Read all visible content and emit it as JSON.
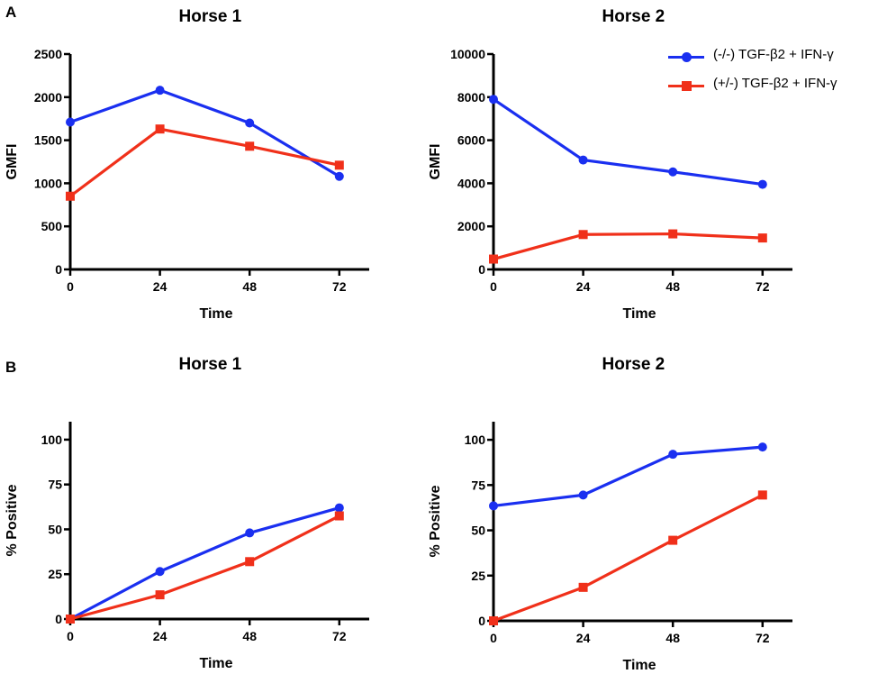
{
  "panel_letters": [
    "A",
    "B"
  ],
  "legend": [
    {
      "label": "(-/-) TGF-β2 + IFN-γ",
      "color": "#1a2ff0",
      "marker": "circle"
    },
    {
      "label": "(+/-) TGF-β2 + IFN-γ",
      "color": "#f0301a",
      "marker": "square"
    }
  ],
  "chart_data": [
    {
      "type": "line",
      "title": "Horse 1",
      "xlabel": "Time",
      "ylabel": "GMFI",
      "x": [
        0,
        24,
        48,
        72
      ],
      "xticks": [
        "0",
        "24",
        "48",
        "72"
      ],
      "xlim": [
        0,
        80
      ],
      "ylim": [
        0,
        2500
      ],
      "yticks": [
        "0",
        "500",
        "1000",
        "1500",
        "2000",
        "2500"
      ],
      "ytick_values": [
        0,
        500,
        1000,
        1500,
        2000,
        2500
      ],
      "series": [
        {
          "name": "(-/-) TGF-β2 + IFN-γ",
          "color": "#1a2ff0",
          "marker": "circle",
          "values": [
            1710,
            2080,
            1700,
            1080
          ]
        },
        {
          "name": "(+/-) TGF-β2 + IFN-γ",
          "color": "#f0301a",
          "marker": "square",
          "values": [
            850,
            1630,
            1430,
            1210
          ]
        }
      ]
    },
    {
      "type": "line",
      "title": "Horse 2",
      "xlabel": "Time",
      "ylabel": "GMFI",
      "x": [
        0,
        24,
        48,
        72
      ],
      "xticks": [
        "0",
        "24",
        "48",
        "72"
      ],
      "xlim": [
        0,
        80
      ],
      "ylim": [
        0,
        10000
      ],
      "yticks": [
        "0",
        "2000",
        "4000",
        "6000",
        "8000",
        "10000"
      ],
      "ytick_values": [
        0,
        2000,
        4000,
        6000,
        8000,
        10000
      ],
      "series": [
        {
          "name": "(-/-) TGF-β2 + IFN-γ",
          "color": "#1a2ff0",
          "marker": "circle",
          "values": [
            7900,
            5080,
            4530,
            3950
          ]
        },
        {
          "name": "(+/-) TGF-β2 + IFN-γ",
          "color": "#f0301a",
          "marker": "square",
          "values": [
            480,
            1620,
            1650,
            1460
          ]
        }
      ]
    },
    {
      "type": "line",
      "title": "Horse 1",
      "xlabel": "Time",
      "ylabel": "% Positive",
      "x": [
        0,
        24,
        48,
        72
      ],
      "xticks": [
        "0",
        "24",
        "48",
        "72"
      ],
      "xlim": [
        0,
        80
      ],
      "ylim": [
        0,
        110
      ],
      "yticks": [
        "0",
        "25",
        "50",
        "75",
        "100"
      ],
      "ytick_values": [
        0,
        25,
        50,
        75,
        100
      ],
      "series": [
        {
          "name": "(-/-) TGF-β2 + IFN-γ",
          "color": "#1a2ff0",
          "marker": "circle",
          "values": [
            0,
            26.5,
            48,
            62
          ]
        },
        {
          "name": "(+/-) TGF-β2 + IFN-γ",
          "color": "#f0301a",
          "marker": "square",
          "values": [
            0,
            13.5,
            32,
            57.5
          ]
        }
      ]
    },
    {
      "type": "line",
      "title": "Horse 2",
      "xlabel": "Time",
      "ylabel": "% Positive",
      "x": [
        0,
        24,
        48,
        72
      ],
      "xticks": [
        "0",
        "24",
        "48",
        "72"
      ],
      "xlim": [
        0,
        80
      ],
      "ylim": [
        0,
        110
      ],
      "yticks": [
        "0",
        "25",
        "50",
        "75",
        "100"
      ],
      "ytick_values": [
        0,
        25,
        50,
        75,
        100
      ],
      "series": [
        {
          "name": "(-/-) TGF-β2 + IFN-γ",
          "color": "#1a2ff0",
          "marker": "circle",
          "values": [
            63.5,
            69.5,
            92,
            96
          ]
        },
        {
          "name": "(+/-) TGF-β2 + IFN-γ",
          "color": "#f0301a",
          "marker": "square",
          "values": [
            0,
            18.5,
            44.5,
            69.5
          ]
        }
      ]
    }
  ]
}
